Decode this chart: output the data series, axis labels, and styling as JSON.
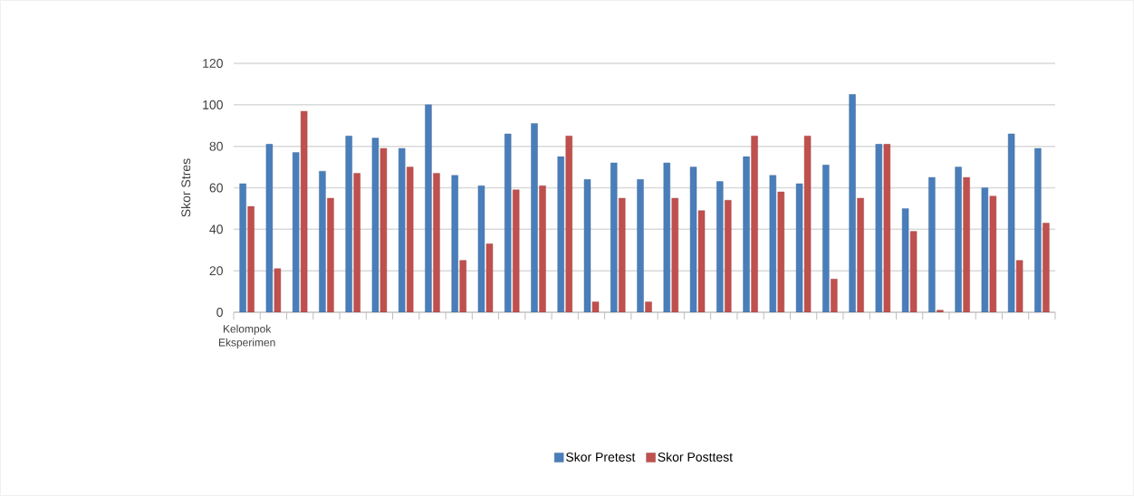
{
  "chart_data": {
    "type": "bar",
    "ylabel": "Skor Stres",
    "categories": [
      "Kelompok Eksperimen",
      null,
      null,
      null,
      null,
      null,
      null,
      null,
      null,
      null,
      null,
      null,
      null,
      null,
      null,
      null,
      null,
      null,
      null,
      null,
      null,
      null,
      null,
      null,
      null,
      null,
      null,
      null,
      null,
      null,
      null
    ],
    "series": [
      {
        "name": "Skor Pretest",
        "color": "#4a7ebb",
        "values": [
          62,
          81,
          77,
          68,
          85,
          84,
          79,
          100,
          66,
          61,
          86,
          91,
          75,
          64,
          72,
          64,
          72,
          70,
          63,
          75,
          66,
          62,
          71,
          105,
          81,
          50,
          65,
          70,
          60,
          86,
          79
        ]
      },
      {
        "name": "Skor Posttest",
        "color": "#c0504d",
        "values": [
          51,
          21,
          97,
          55,
          67,
          79,
          70,
          67,
          25,
          33,
          59,
          61,
          85,
          5,
          55,
          5,
          55,
          49,
          54,
          85,
          58,
          85,
          16,
          55,
          81,
          39,
          1,
          65,
          56,
          25,
          43
        ]
      }
    ],
    "ylim": [
      0,
      120
    ],
    "yticks": [
      0,
      20,
      40,
      60,
      80,
      100,
      120
    ],
    "grid": "y",
    "legend": "bottom"
  }
}
